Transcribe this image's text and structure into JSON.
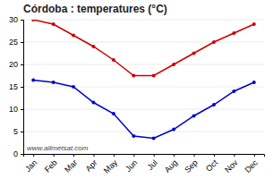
{
  "chart_data": {
    "type": "line",
    "title": "Córdoba : temperatures (°C)",
    "categories": [
      "Jan",
      "Feb",
      "Mar",
      "Apr",
      "May",
      "Jun",
      "Jul",
      "Aug",
      "Sep",
      "Oct",
      "Nov",
      "Dec"
    ],
    "series": [
      {
        "color": "#cc0000",
        "values": [
          30,
          29,
          26.5,
          24,
          21,
          17.5,
          17.5,
          20,
          22.5,
          25,
          27,
          29
        ]
      },
      {
        "color": "#0000cc",
        "values": [
          16.5,
          16,
          15,
          11.5,
          9,
          4,
          3.5,
          5.5,
          8.5,
          11,
          14,
          16
        ]
      }
    ],
    "ylim": [
      0,
      30
    ],
    "yticks": [
      0,
      5,
      10,
      15,
      20,
      25,
      30
    ],
    "grid": true,
    "marker": "circle",
    "annotations": [
      "www.allmetsat.com"
    ]
  }
}
